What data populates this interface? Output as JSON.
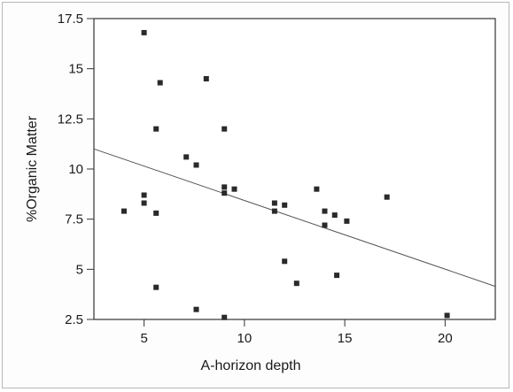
{
  "chart_data": {
    "type": "scatter",
    "title": "",
    "xlabel": "A-horizon depth",
    "ylabel": "%Organic Matter",
    "xlim": [
      2.5,
      22.5
    ],
    "ylim": [
      2.5,
      17.5
    ],
    "x_ticks": [
      5,
      10,
      15,
      20
    ],
    "x_tick_labels": [
      "5",
      "10",
      "15",
      "20"
    ],
    "y_ticks": [
      2.5,
      5,
      7.5,
      10,
      12.5,
      15,
      17.5
    ],
    "y_tick_labels": [
      "2.5",
      "5",
      "7.5",
      "10",
      "12.5",
      "15",
      "17.5"
    ],
    "grid": false,
    "legend": "none",
    "points": [
      {
        "x": 4.0,
        "y": 7.9
      },
      {
        "x": 5.0,
        "y": 16.8
      },
      {
        "x": 5.0,
        "y": 8.7
      },
      {
        "x": 5.0,
        "y": 8.3
      },
      {
        "x": 5.6,
        "y": 12.0
      },
      {
        "x": 5.6,
        "y": 7.8
      },
      {
        "x": 5.6,
        "y": 4.1
      },
      {
        "x": 5.8,
        "y": 14.3
      },
      {
        "x": 7.1,
        "y": 10.6
      },
      {
        "x": 7.6,
        "y": 10.2
      },
      {
        "x": 7.6,
        "y": 3.0
      },
      {
        "x": 8.1,
        "y": 14.5
      },
      {
        "x": 9.0,
        "y": 12.0
      },
      {
        "x": 9.0,
        "y": 9.1
      },
      {
        "x": 9.0,
        "y": 8.8
      },
      {
        "x": 9.0,
        "y": 2.6
      },
      {
        "x": 9.5,
        "y": 9.0
      },
      {
        "x": 11.5,
        "y": 8.3
      },
      {
        "x": 11.5,
        "y": 7.9
      },
      {
        "x": 12.0,
        "y": 8.2
      },
      {
        "x": 12.0,
        "y": 5.4
      },
      {
        "x": 12.6,
        "y": 4.3
      },
      {
        "x": 13.6,
        "y": 9.0
      },
      {
        "x": 14.0,
        "y": 7.9
      },
      {
        "x": 14.0,
        "y": 7.2
      },
      {
        "x": 14.5,
        "y": 7.7
      },
      {
        "x": 14.6,
        "y": 4.7
      },
      {
        "x": 15.1,
        "y": 7.4
      },
      {
        "x": 17.1,
        "y": 8.6
      },
      {
        "x": 20.1,
        "y": 2.7
      }
    ],
    "fit_line": {
      "x": [
        2.5,
        22.5
      ],
      "y": [
        11.0,
        4.15
      ]
    },
    "colors": {
      "points": "#2a2a2a",
      "line": "#555555",
      "axes": "#333333"
    }
  }
}
